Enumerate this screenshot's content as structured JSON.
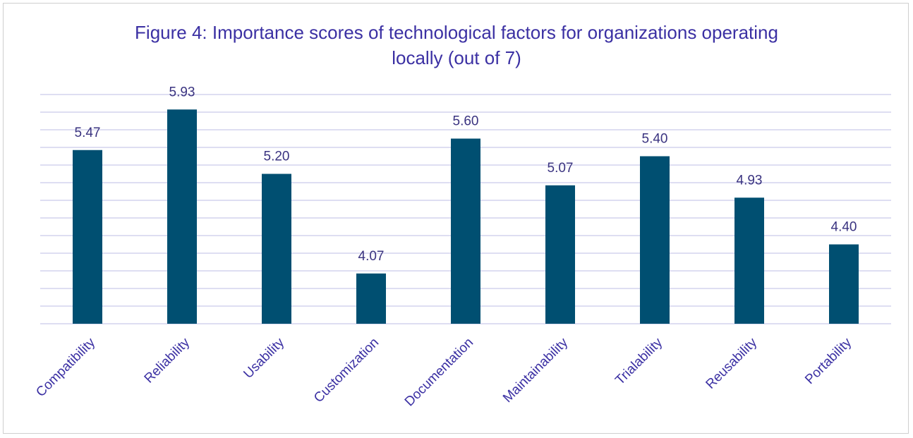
{
  "chart_data": {
    "type": "bar",
    "title": "Figure 4: Importance scores of technological factors for organizations operating locally (out of 7)",
    "categories": [
      "Compatibility",
      "Reliability",
      "Usability",
      "Customization",
      "Documentation",
      "Maintainability",
      "Trialability",
      "Reusability",
      "Portability"
    ],
    "values": [
      5.47,
      5.93,
      5.2,
      4.07,
      5.6,
      5.07,
      5.4,
      4.93,
      4.4
    ],
    "value_labels": [
      "5.47",
      "5.93",
      "5.20",
      "4.07",
      "5.60",
      "5.07",
      "5.40",
      "4.93",
      "4.40"
    ],
    "color": "#004f71",
    "ylim": [
      3.5,
      6.1
    ],
    "yticks": [
      3.5,
      3.7,
      3.9,
      4.1,
      4.3,
      4.5,
      4.7,
      4.9,
      5.1,
      5.3,
      5.5,
      5.7,
      5.9,
      6.1
    ],
    "grid": true
  }
}
